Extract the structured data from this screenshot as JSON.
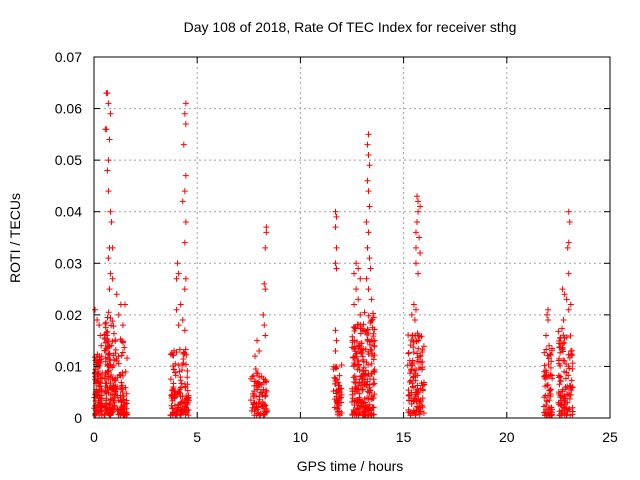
{
  "chart_data": {
    "type": "scatter",
    "title": "Day 108 of 2018, Rate Of TEC Index for receiver sthg",
    "xlabel": "GPS time / hours",
    "ylabel": "ROTI / TECUs",
    "xlim": [
      0,
      25
    ],
    "ylim": [
      0,
      0.07
    ],
    "x_ticks": [
      0,
      5,
      10,
      15,
      20,
      25
    ],
    "x_tick_labels": [
      "0",
      "5",
      "10",
      "15",
      "20",
      "25"
    ],
    "y_ticks": [
      0,
      0.01,
      0.02,
      0.03,
      0.04,
      0.05,
      0.06,
      0.07
    ],
    "y_tick_labels": [
      "0",
      "0.01",
      "0.02",
      "0.03",
      "0.04",
      "0.05",
      "0.06",
      "0.07"
    ],
    "grid": true,
    "marker": "plus",
    "color": "#ff0000",
    "series": [
      {
        "name": "ROTI",
        "clusters": [
          {
            "x_range": [
              0.0,
              0.4
            ],
            "count": 90,
            "typical_max": 0.012,
            "peaks": [
              [
                0.05,
                0.021
              ],
              [
                0.15,
                0.019
              ],
              [
                0.25,
                0.018
              ],
              [
                0.3,
                0.016
              ],
              [
                0.35,
                0.014
              ]
            ]
          },
          {
            "x_range": [
              0.5,
              1.0
            ],
            "count": 130,
            "typical_max": 0.02,
            "peaks": [
              [
                0.6,
                0.063
              ],
              [
                0.65,
                0.063
              ],
              [
                0.7,
                0.061
              ],
              [
                0.55,
                0.056
              ],
              [
                0.6,
                0.056
              ],
              [
                0.8,
                0.059
              ],
              [
                0.75,
                0.054
              ],
              [
                0.7,
                0.05
              ],
              [
                0.65,
                0.048
              ],
              [
                0.7,
                0.044
              ],
              [
                0.8,
                0.04
              ],
              [
                0.85,
                0.038
              ],
              [
                0.75,
                0.033
              ],
              [
                0.9,
                0.033
              ],
              [
                0.7,
                0.031
              ],
              [
                0.8,
                0.028
              ],
              [
                0.9,
                0.027
              ],
              [
                0.75,
                0.025
              ]
            ]
          },
          {
            "x_range": [
              1.0,
              1.6
            ],
            "count": 90,
            "typical_max": 0.015,
            "peaks": [
              [
                1.1,
                0.024
              ],
              [
                1.3,
                0.022
              ],
              [
                1.5,
                0.022
              ],
              [
                1.2,
                0.02
              ],
              [
                1.4,
                0.018
              ]
            ]
          },
          {
            "x_range": [
              3.7,
              4.6
            ],
            "count": 120,
            "typical_max": 0.013,
            "peaks": [
              [
                4.45,
                0.061
              ],
              [
                4.4,
                0.059
              ],
              [
                4.45,
                0.057
              ],
              [
                4.35,
                0.053
              ],
              [
                4.45,
                0.047
              ],
              [
                4.4,
                0.044
              ],
              [
                4.3,
                0.042
              ],
              [
                4.45,
                0.038
              ],
              [
                4.4,
                0.034
              ],
              [
                4.05,
                0.03
              ],
              [
                4.1,
                0.028
              ],
              [
                4.0,
                0.027
              ],
              [
                4.45,
                0.027
              ],
              [
                4.4,
                0.025
              ],
              [
                4.2,
                0.022
              ],
              [
                4.0,
                0.021
              ],
              [
                4.3,
                0.019
              ],
              [
                4.1,
                0.018
              ],
              [
                4.4,
                0.017
              ]
            ]
          },
          {
            "x_range": [
              7.6,
              8.4
            ],
            "count": 80,
            "typical_max": 0.009,
            "peaks": [
              [
                8.35,
                0.037
              ],
              [
                8.35,
                0.036
              ],
              [
                8.3,
                0.033
              ],
              [
                8.25,
                0.026
              ],
              [
                8.3,
                0.025
              ],
              [
                8.2,
                0.02
              ],
              [
                8.25,
                0.018
              ],
              [
                8.3,
                0.016
              ],
              [
                7.9,
                0.015
              ],
              [
                8.0,
                0.013
              ],
              [
                7.8,
                0.012
              ]
            ]
          },
          {
            "x_range": [
              11.6,
              12.0
            ],
            "count": 50,
            "typical_max": 0.01,
            "peaks": [
              [
                11.7,
                0.04
              ],
              [
                11.75,
                0.039
              ],
              [
                11.7,
                0.037
              ],
              [
                11.75,
                0.033
              ],
              [
                11.7,
                0.03
              ],
              [
                11.75,
                0.029
              ],
              [
                11.7,
                0.017
              ],
              [
                11.75,
                0.015
              ],
              [
                11.7,
                0.013
              ]
            ]
          },
          {
            "x_range": [
              12.5,
              13.0
            ],
            "count": 110,
            "typical_max": 0.018,
            "peaks": [
              [
                12.7,
                0.03
              ],
              [
                12.8,
                0.029
              ],
              [
                12.6,
                0.028
              ],
              [
                12.9,
                0.027
              ],
              [
                12.7,
                0.025
              ],
              [
                12.8,
                0.023
              ],
              [
                12.6,
                0.022
              ],
              [
                12.9,
                0.02
              ]
            ]
          },
          {
            "x_range": [
              13.0,
              13.6
            ],
            "count": 130,
            "typical_max": 0.02,
            "peaks": [
              [
                13.3,
                0.055
              ],
              [
                13.25,
                0.053
              ],
              [
                13.3,
                0.051
              ],
              [
                13.35,
                0.049
              ],
              [
                13.25,
                0.046
              ],
              [
                13.3,
                0.044
              ],
              [
                13.35,
                0.041
              ],
              [
                13.2,
                0.038
              ],
              [
                13.3,
                0.036
              ],
              [
                13.25,
                0.033
              ],
              [
                13.35,
                0.031
              ],
              [
                13.4,
                0.029
              ],
              [
                13.2,
                0.027
              ],
              [
                13.3,
                0.025
              ],
              [
                13.45,
                0.023
              ]
            ]
          },
          {
            "x_range": [
              15.2,
              16.0
            ],
            "count": 120,
            "typical_max": 0.016,
            "peaks": [
              [
                15.65,
                0.043
              ],
              [
                15.7,
                0.042
              ],
              [
                15.8,
                0.041
              ],
              [
                15.7,
                0.04
              ],
              [
                15.65,
                0.038
              ],
              [
                15.6,
                0.036
              ],
              [
                15.75,
                0.035
              ],
              [
                15.6,
                0.033
              ],
              [
                15.8,
                0.032
              ],
              [
                15.6,
                0.03
              ],
              [
                15.7,
                0.028
              ],
              [
                15.5,
                0.022
              ],
              [
                15.6,
                0.021
              ],
              [
                15.4,
                0.02
              ],
              [
                15.55,
                0.019
              ]
            ]
          },
          {
            "x_range": [
              21.8,
              22.2
            ],
            "count": 60,
            "typical_max": 0.013,
            "peaks": [
              [
                22.0,
                0.021
              ],
              [
                21.95,
                0.02
              ],
              [
                22.0,
                0.019
              ],
              [
                21.9,
                0.016
              ],
              [
                22.05,
                0.014
              ]
            ]
          },
          {
            "x_range": [
              22.5,
              23.2
            ],
            "count": 110,
            "typical_max": 0.017,
            "peaks": [
              [
                23.0,
                0.04
              ],
              [
                23.05,
                0.038
              ],
              [
                23.0,
                0.034
              ],
              [
                22.95,
                0.033
              ],
              [
                23.0,
                0.028
              ],
              [
                22.7,
                0.025
              ],
              [
                22.8,
                0.024
              ],
              [
                22.9,
                0.023
              ],
              [
                23.1,
                0.022
              ],
              [
                23.0,
                0.021
              ],
              [
                22.75,
                0.019
              ]
            ]
          }
        ]
      }
    ]
  }
}
